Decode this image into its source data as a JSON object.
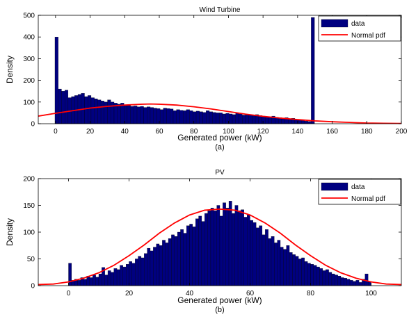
{
  "chart_data": [
    {
      "type": "bar",
      "title": "Wind Turbine",
      "xlabel": "Generated power (kW)",
      "ylabel": "Density",
      "caption": "(a)",
      "xlim": [
        -10,
        200
      ],
      "ylim": [
        0,
        500
      ],
      "xticks": [
        0,
        20,
        40,
        60,
        80,
        100,
        120,
        140,
        160,
        180,
        200
      ],
      "yticks": [
        0,
        100,
        200,
        300,
        400,
        500
      ],
      "bar_color": "#000080",
      "line_color": "#ff0000",
      "legend": {
        "position": "top-right",
        "entries": [
          "data",
          "Normal pdf"
        ]
      },
      "series": [
        {
          "name": "data",
          "type": "histogram",
          "bin_width": 1.9,
          "x": [
            0.6,
            2.5,
            4.4,
            6.3,
            8.2,
            10.1,
            12.0,
            13.9,
            15.8,
            17.7,
            19.6,
            21.5,
            23.4,
            25.3,
            27.2,
            29.1,
            31.0,
            32.9,
            34.8,
            36.7,
            38.6,
            40.5,
            42.4,
            44.3,
            46.2,
            48.1,
            50.0,
            51.9,
            53.8,
            55.7,
            57.6,
            59.5,
            61.4,
            63.3,
            65.2,
            67.1,
            69.0,
            70.9,
            72.8,
            74.7,
            76.6,
            78.5,
            80.4,
            82.3,
            84.2,
            86.1,
            88.0,
            89.9,
            91.8,
            93.7,
            95.6,
            97.5,
            99.4,
            101.3,
            103.2,
            105.1,
            107.0,
            108.9,
            110.8,
            112.7,
            114.6,
            116.5,
            118.4,
            120.3,
            122.2,
            124.1,
            126.0,
            127.9,
            129.8,
            131.7,
            133.6,
            135.5,
            137.4,
            139.3,
            141.2,
            143.1,
            145.0,
            146.9,
            148.8
          ],
          "values": [
            400,
            160,
            150,
            155,
            120,
            125,
            130,
            135,
            140,
            125,
            130,
            120,
            115,
            110,
            105,
            100,
            110,
            100,
            95,
            90,
            95,
            85,
            85,
            80,
            82,
            78,
            80,
            75,
            78,
            75,
            72,
            70,
            65,
            72,
            70,
            68,
            60,
            65,
            62,
            60,
            65,
            60,
            55,
            58,
            55,
            52,
            60,
            55,
            52,
            50,
            50,
            45,
            48,
            45,
            42,
            50,
            45,
            40,
            42,
            40,
            38,
            42,
            38,
            35,
            32,
            30,
            35,
            30,
            28,
            25,
            28,
            22,
            25,
            20,
            18,
            15,
            12,
            10,
            490
          ]
        },
        {
          "name": "Normal pdf",
          "type": "line",
          "x": [
            -10,
            0,
            10,
            20,
            30,
            40,
            50,
            55,
            60,
            70,
            80,
            90,
            100,
            110,
            120,
            130,
            140,
            150,
            160,
            170,
            180,
            190,
            200
          ],
          "values": [
            35,
            48,
            60,
            72,
            80,
            86,
            90,
            91,
            90,
            86,
            78,
            68,
            56,
            44,
            34,
            26,
            19,
            13,
            9,
            6,
            3,
            2,
            1
          ]
        }
      ]
    },
    {
      "type": "bar",
      "title": "PV",
      "xlabel": "Generated power (kW)",
      "ylabel": "Density",
      "caption": "(b)",
      "xlim": [
        -10,
        110
      ],
      "ylim": [
        0,
        200
      ],
      "xticks": [
        0,
        20,
        40,
        60,
        80,
        100
      ],
      "yticks": [
        0,
        50,
        100,
        150,
        200
      ],
      "bar_color": "#000080",
      "line_color": "#ff0000",
      "legend": {
        "position": "top-right",
        "entries": [
          "data",
          "Normal pdf"
        ]
      },
      "series": [
        {
          "name": "data",
          "type": "histogram",
          "bin_width": 1.0,
          "x": [
            0.5,
            1.5,
            2.5,
            3.5,
            4.5,
            5.5,
            6.5,
            7.5,
            8.5,
            9.5,
            10.5,
            11.5,
            12.5,
            13.5,
            14.5,
            15.5,
            16.5,
            17.5,
            18.5,
            19.5,
            20.5,
            21.5,
            22.5,
            23.5,
            24.5,
            25.5,
            26.5,
            27.5,
            28.5,
            29.5,
            30.5,
            31.5,
            32.5,
            33.5,
            34.5,
            35.5,
            36.5,
            37.5,
            38.5,
            39.5,
            40.5,
            41.5,
            42.5,
            43.5,
            44.5,
            45.5,
            46.5,
            47.5,
            48.5,
            49.5,
            50.5,
            51.5,
            52.5,
            53.5,
            54.5,
            55.5,
            56.5,
            57.5,
            58.5,
            59.5,
            60.5,
            61.5,
            62.5,
            63.5,
            64.5,
            65.5,
            66.5,
            67.5,
            68.5,
            69.5,
            70.5,
            71.5,
            72.5,
            73.5,
            74.5,
            75.5,
            76.5,
            77.5,
            78.5,
            79.5,
            80.5,
            81.5,
            82.5,
            83.5,
            84.5,
            85.5,
            86.5,
            87.5,
            88.5,
            89.5,
            90.5,
            91.5,
            92.5,
            93.5,
            94.5,
            95.5,
            96.5,
            97.5,
            98.5,
            99.5
          ],
          "values": [
            42,
            10,
            12,
            10,
            15,
            12,
            18,
            15,
            20,
            16,
            22,
            34,
            20,
            28,
            25,
            32,
            30,
            38,
            35,
            40,
            45,
            42,
            50,
            55,
            52,
            60,
            70,
            65,
            72,
            78,
            75,
            85,
            80,
            88,
            95,
            92,
            100,
            105,
            98,
            112,
            115,
            110,
            125,
            130,
            120,
            135,
            140,
            145,
            140,
            150,
            130,
            155,
            145,
            158,
            135,
            150,
            140,
            142,
            128,
            132,
            122,
            118,
            108,
            112,
            95,
            105,
            88,
            92,
            80,
            85,
            72,
            68,
            75,
            62,
            58,
            55,
            50,
            52,
            45,
            42,
            40,
            38,
            35,
            32,
            28,
            30,
            25,
            22,
            20,
            18,
            15,
            14,
            12,
            10,
            8,
            10,
            6,
            12,
            22,
            8
          ]
        },
        {
          "name": "Normal pdf",
          "type": "line",
          "x": [
            -10,
            -5,
            0,
            5,
            10,
            15,
            20,
            25,
            30,
            35,
            40,
            45,
            50,
            55,
            60,
            65,
            70,
            75,
            80,
            85,
            90,
            95,
            100,
            105,
            110
          ],
          "values": [
            2,
            3,
            7,
            14,
            24,
            38,
            56,
            76,
            98,
            117,
            132,
            141,
            143,
            141,
            132,
            117,
            98,
            76,
            56,
            38,
            24,
            14,
            7,
            3,
            2
          ]
        }
      ]
    }
  ]
}
